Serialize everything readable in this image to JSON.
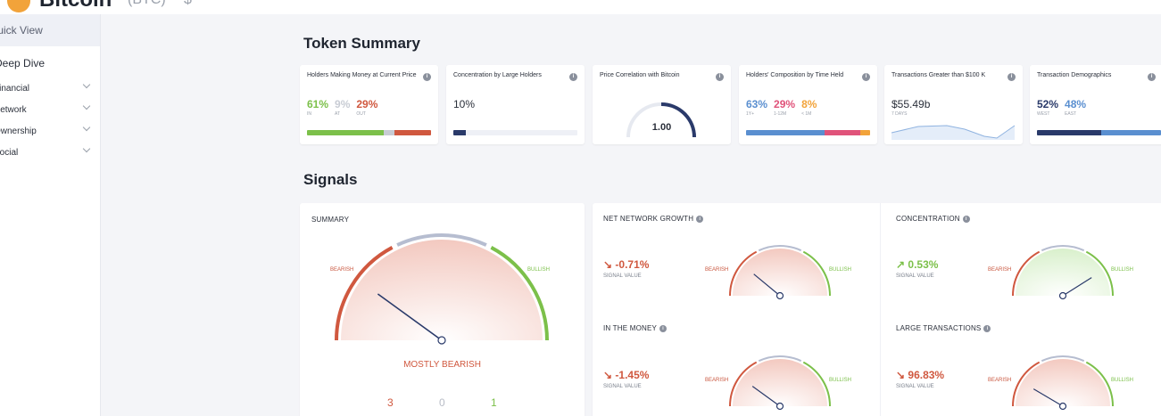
{
  "header": {
    "title": "Bitcoin",
    "ticker": "(BTC)",
    "price": "$",
    "logo_color": "#f2a33a"
  },
  "sidebar": {
    "quick_view": "Quick View",
    "deep_dive": "Deep Dive",
    "items": [
      {
        "label": "Financial"
      },
      {
        "label": "Network"
      },
      {
        "label": "Ownership"
      },
      {
        "label": "Social"
      }
    ]
  },
  "token_summary": {
    "title": "Token Summary",
    "cards": [
      {
        "title": "Holders Making Money at Current Price",
        "values": [
          {
            "value": "61%",
            "label": "IN",
            "color": "#7cc04a"
          },
          {
            "value": "9%",
            "label": "AT",
            "color": "#c8ccd4"
          },
          {
            "value": "29%",
            "label": "OUT",
            "color": "#d0583f"
          }
        ]
      },
      {
        "title": "Concentration by Large Holders",
        "value": "10%",
        "fraction": 0.1
      },
      {
        "title": "Price Correlation with Bitcoin",
        "value": "1.00",
        "fraction": 1.0
      },
      {
        "title": "Holders' Composition by Time Held",
        "values": [
          {
            "value": "63%",
            "label": "1Y+",
            "color": "#5a8fd0"
          },
          {
            "value": "29%",
            "label": "1-12M",
            "color": "#e0537a"
          },
          {
            "value": "8%",
            "label": "< 1M",
            "color": "#f2a33a"
          }
        ]
      },
      {
        "title": "Transactions Greater than $100 K",
        "value": "$55.49b",
        "sub": "7 DAYS"
      },
      {
        "title": "Transaction Demographics",
        "values": [
          {
            "value": "52%",
            "label": "WEST",
            "color": "#2a3a6a"
          },
          {
            "value": "48%",
            "label": "EAST",
            "color": "#5a8fd0"
          }
        ]
      }
    ]
  },
  "signals": {
    "title": "Signals",
    "summary": {
      "label": "SUMMARY",
      "verdict": "MOSTLY BEARISH",
      "bearish": "BEARISH",
      "bullish": "BULLISH",
      "counts": [
        {
          "value": "3",
          "color": "#d0583f"
        },
        {
          "value": "0",
          "color": "#b8bcc6"
        },
        {
          "value": "1",
          "color": "#7cc04a"
        }
      ]
    },
    "items": [
      {
        "name": "NET NETWORK GROWTH",
        "value": "-0.71%",
        "arrow": "↘",
        "sub": "SIGNAL VALUE",
        "trend": "bearish",
        "level": 0.22
      },
      {
        "name": "CONCENTRATION",
        "value": "0.53%",
        "arrow": "↗",
        "sub": "SIGNAL VALUE",
        "trend": "bullish",
        "level": 0.82
      },
      {
        "name": "IN THE MONEY",
        "value": "-1.45%",
        "arrow": "↘",
        "sub": "SIGNAL VALUE",
        "trend": "bearish",
        "level": 0.2
      },
      {
        "name": "LARGE TRANSACTIONS",
        "value": "96.83%",
        "arrow": "↘",
        "sub": "SIGNAL VALUE",
        "trend": "bearish",
        "level": 0.17
      }
    ],
    "colors": {
      "bearish": "#d0583f",
      "bullish": "#7cc04a",
      "neutral": "#b6bdd0",
      "needle": "#2a3a6a"
    }
  }
}
